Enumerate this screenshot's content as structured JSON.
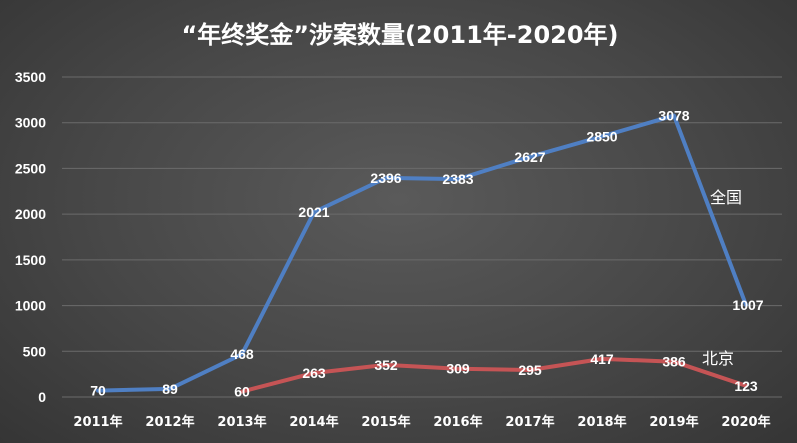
{
  "chart_data": {
    "type": "line",
    "title": "“年终奖金”涉案数量(2011年-2020年)",
    "categories": [
      "2011年",
      "2012年",
      "2013年",
      "2014年",
      "2015年",
      "2016年",
      "2017年",
      "2018年",
      "2019年",
      "2020年"
    ],
    "ylim": [
      0,
      3500
    ],
    "yticks": [
      0,
      500,
      1000,
      1500,
      2000,
      2500,
      3000,
      3500
    ],
    "grid": true,
    "series": [
      {
        "name": "全国",
        "color": "#4f7fc3",
        "values": [
          70,
          89,
          468,
          2021,
          2396,
          2383,
          2627,
          2850,
          3078,
          1007
        ]
      },
      {
        "name": "北京",
        "color": "#c55455",
        "values": [
          null,
          null,
          60,
          263,
          352,
          309,
          295,
          417,
          386,
          123
        ]
      }
    ]
  }
}
